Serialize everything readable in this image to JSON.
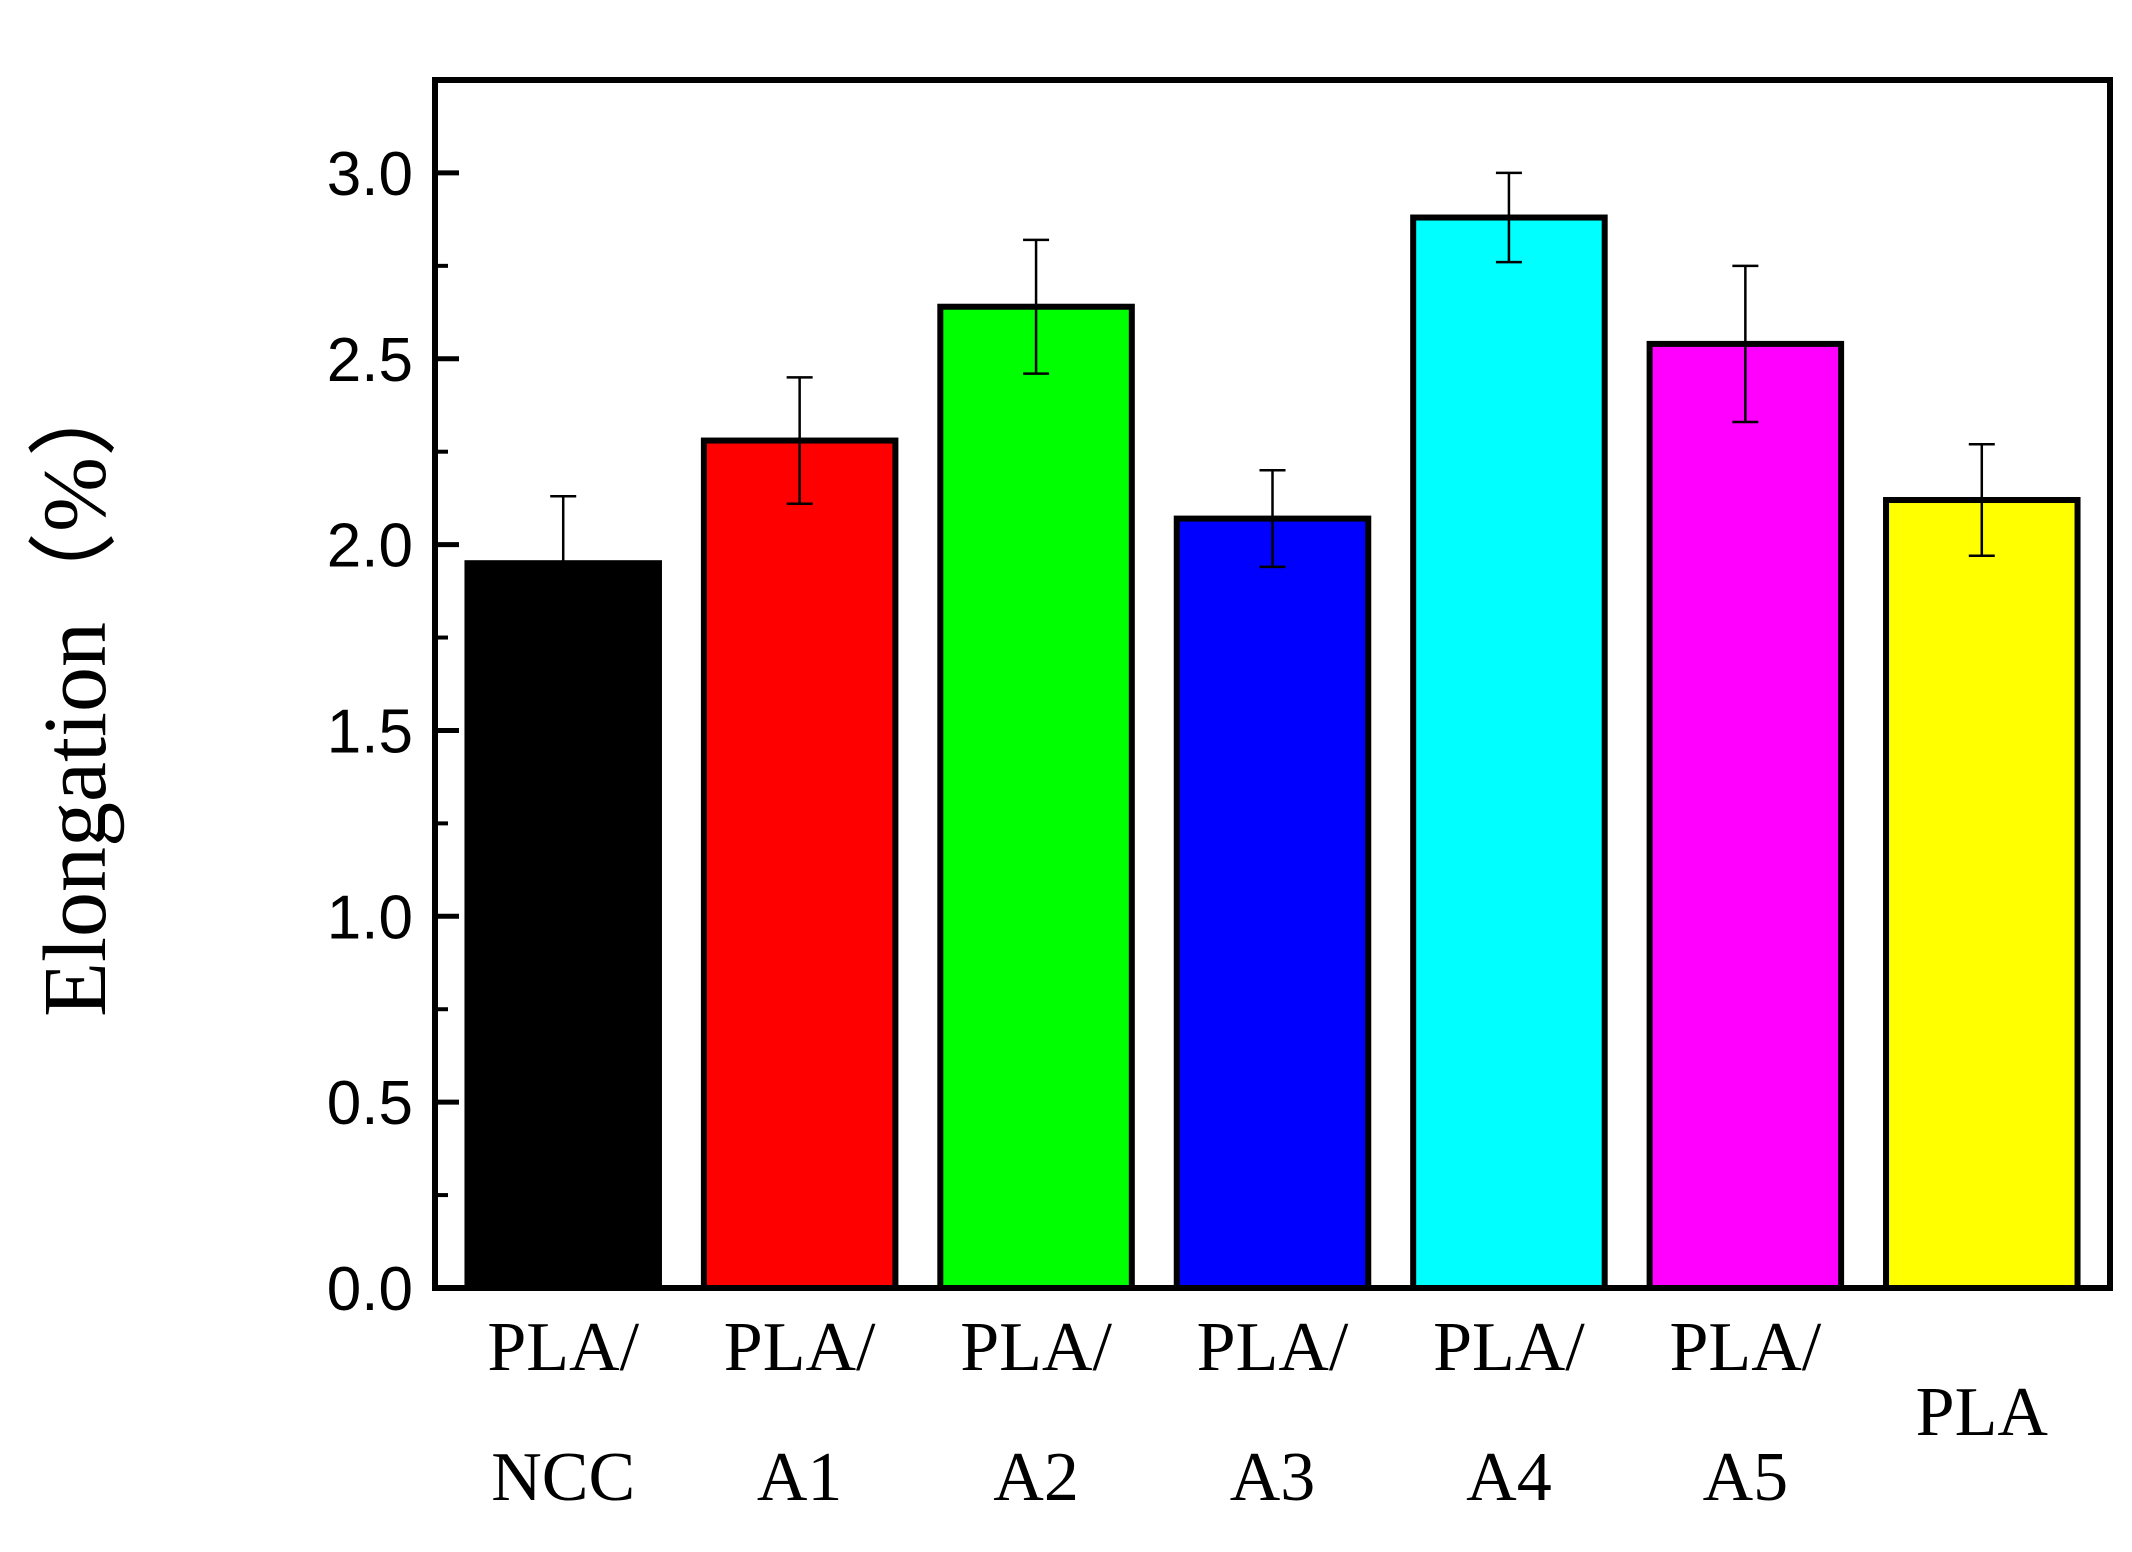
{
  "chart_data": {
    "type": "bar",
    "categories": [
      [
        "PLA/",
        "NCC"
      ],
      [
        "PLA/",
        "A1"
      ],
      [
        "PLA/",
        "A2"
      ],
      [
        "PLA/",
        "A3"
      ],
      [
        "PLA/",
        "A4"
      ],
      [
        "PLA/",
        "A5"
      ],
      [
        "PLA"
      ]
    ],
    "values": [
      1.95,
      2.28,
      2.64,
      2.07,
      2.88,
      2.54,
      2.12
    ],
    "errors": [
      0.18,
      0.17,
      0.18,
      0.13,
      0.12,
      0.21,
      0.15
    ],
    "colors": [
      "#000000",
      "#ff0000",
      "#00ff00",
      "#0000ff",
      "#00ffff",
      "#ff00ff",
      "#ffff00"
    ],
    "ylabel": "Elongation（%）",
    "xlabel": "",
    "ylim": [
      0,
      3.25
    ],
    "yticks": [
      "0.0",
      "0.5",
      "1.0",
      "1.5",
      "2.0",
      "2.5",
      "3.0"
    ],
    "grid": false
  }
}
